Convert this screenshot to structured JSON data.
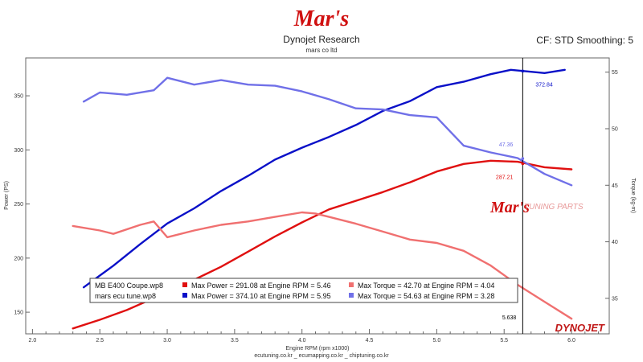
{
  "header": {
    "logo_text": "Mar's",
    "title": "Dynojet Research",
    "subtitle": "mars co ltd",
    "cf_text": "CF: STD Smoothing: 5"
  },
  "footer": "ecutuning.co.kr _ ecumapping.co.kr _ chiptuning.co.kr",
  "watermark": {
    "logo": "Mar's",
    "text": "TUNING PARTS"
  },
  "brand_logo": "DYNOJET",
  "colors": {
    "stock_power": "#e01010",
    "stock_torque": "#f07070",
    "tuned_power": "#0a10c8",
    "tuned_torque": "#7070e8",
    "cursor": "#000000"
  },
  "chart_data": {
    "type": "line",
    "xlabel": "Engine RPM (rpm x1000)",
    "ylabel_left": "Power (PS)",
    "ylabel_right": "Torque (kg-m)",
    "xlim": [
      1.95,
      6.28
    ],
    "ylim_left": [
      130,
      385
    ],
    "ylim_right": [
      31.86,
      56.26
    ],
    "x_ticks": [
      "2.0",
      "2.5",
      "3.0",
      "3.5",
      "4.0",
      "4.5",
      "5.0",
      "5.5",
      "6.0"
    ],
    "y_ticks_left": [
      "150",
      "200",
      "250",
      "300",
      "350"
    ],
    "y_ticks_right": [
      "35",
      "40",
      "45",
      "50",
      "55"
    ],
    "cursor": {
      "x": 5.638,
      "label": "5.638"
    },
    "annotations": [
      {
        "text": "372.84",
        "x": 5.638,
        "y": 372.84,
        "axis": "left",
        "series": "tuned_power"
      },
      {
        "text": "47.36",
        "x": 5.638,
        "y": 47.36,
        "axis": "right",
        "series": "tuned_torque"
      },
      {
        "text": "287.21",
        "x": 5.638,
        "y": 287.21,
        "axis": "left",
        "series": "stock_power"
      }
    ],
    "legend": [
      {
        "file": "MB E400 Coupe.wp8",
        "power": "Max Power = 291.08 at Engine RPM = 5.46",
        "torque": "Max Torque = 42.70 at Engine RPM = 4.04"
      },
      {
        "file": "mars ecu tune.wp8",
        "power": "Max Power = 374.10 at Engine RPM = 5.95",
        "torque": "Max Torque = 54.63 at Engine RPM = 3.28"
      }
    ],
    "series": [
      {
        "id": "stock_power",
        "axis": "left",
        "x": [
          2.3,
          2.5,
          2.7,
          2.9,
          3.0,
          3.2,
          3.4,
          3.6,
          3.8,
          4.0,
          4.2,
          4.4,
          4.6,
          4.8,
          5.0,
          5.2,
          5.4,
          5.6,
          5.8,
          6.0
        ],
        "y": [
          135,
          143,
          152,
          163,
          170,
          180,
          192,
          206,
          220,
          233,
          245,
          253,
          261,
          270,
          280,
          287,
          290,
          289,
          284,
          282
        ]
      },
      {
        "id": "tuned_power",
        "axis": "left",
        "x": [
          2.38,
          2.6,
          2.8,
          3.0,
          3.2,
          3.4,
          3.6,
          3.8,
          4.0,
          4.2,
          4.4,
          4.6,
          4.8,
          5.0,
          5.2,
          5.4,
          5.55,
          5.8,
          5.95
        ],
        "y": [
          173,
          193,
          213,
          232,
          246,
          262,
          276,
          291,
          302,
          312,
          323,
          336,
          345,
          358,
          363,
          370,
          374,
          371,
          374
        ]
      },
      {
        "id": "stock_torque",
        "axis": "right",
        "x": [
          2.3,
          2.5,
          2.6,
          2.8,
          2.9,
          3.0,
          3.2,
          3.4,
          3.6,
          3.8,
          4.0,
          4.1,
          4.2,
          4.4,
          4.6,
          4.8,
          5.0,
          5.2,
          5.4,
          5.6,
          5.8,
          6.0
        ],
        "y": [
          41.4,
          41.0,
          40.7,
          41.5,
          41.8,
          40.4,
          41.0,
          41.5,
          41.8,
          42.2,
          42.6,
          42.5,
          42.2,
          41.6,
          40.9,
          40.2,
          39.9,
          39.2,
          37.9,
          36.2,
          34.7,
          33.2
        ]
      },
      {
        "id": "tuned_torque",
        "axis": "right",
        "x": [
          2.38,
          2.5,
          2.7,
          2.9,
          3.0,
          3.2,
          3.4,
          3.6,
          3.8,
          4.0,
          4.2,
          4.4,
          4.6,
          4.8,
          5.0,
          5.2,
          5.4,
          5.6,
          5.8,
          6.0
        ],
        "y": [
          52.4,
          53.2,
          53.0,
          53.4,
          54.5,
          53.9,
          54.3,
          53.9,
          53.8,
          53.3,
          52.6,
          51.8,
          51.7,
          51.2,
          51.0,
          48.5,
          47.9,
          47.4,
          46.0,
          45.0
        ]
      }
    ]
  }
}
